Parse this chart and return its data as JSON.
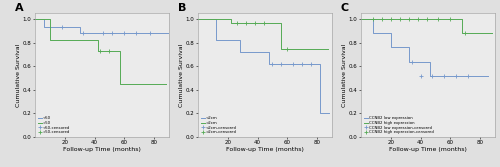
{
  "panels": [
    {
      "label": "A",
      "xlabel": "Follow-up Time (months)",
      "ylabel": "Cumulative Survival",
      "xlim": [
        0,
        90
      ],
      "ylim": [
        0.0,
        1.05
      ],
      "xticks": [
        20,
        40,
        60,
        80
      ],
      "yticks": [
        0.0,
        0.2,
        0.4,
        0.6,
        0.8,
        1.0
      ],
      "legend": [
        "<50",
        ">50",
        "<50-censored",
        ">50-censored"
      ],
      "curve1": {
        "color": "#7799cc",
        "times": [
          0,
          6,
          6,
          30,
          30,
          90
        ],
        "surv": [
          1.0,
          1.0,
          0.93,
          0.93,
          0.88,
          0.88
        ],
        "censor_times": [
          18,
          32,
          46,
          52,
          60,
          68,
          77
        ],
        "censor_surv": [
          0.93,
          0.88,
          0.88,
          0.88,
          0.88,
          0.88,
          0.88
        ]
      },
      "curve2": {
        "color": "#55aa55",
        "times": [
          0,
          10,
          10,
          42,
          42,
          57,
          57,
          78,
          78,
          88
        ],
        "surv": [
          1.0,
          1.0,
          0.82,
          0.82,
          0.73,
          0.73,
          0.45,
          0.45,
          0.45,
          0.45
        ],
        "censor_times": [
          44,
          50
        ],
        "censor_surv": [
          0.73,
          0.73
        ]
      }
    },
    {
      "label": "B",
      "xlabel": "Follow-up Time (months)",
      "ylabel": "Cumulative Survival",
      "xlim": [
        0,
        90
      ],
      "ylim": [
        0.0,
        1.05
      ],
      "xticks": [
        20,
        40,
        60,
        80
      ],
      "yticks": [
        0.0,
        0.2,
        0.4,
        0.6,
        0.8,
        1.0
      ],
      "legend": [
        "<2cm",
        ">2cm",
        "<2cm-censored",
        ">2cm-censored"
      ],
      "curve1": {
        "color": "#7799cc",
        "times": [
          0,
          12,
          12,
          28,
          28,
          48,
          48,
          62,
          62,
          82,
          82,
          88
        ],
        "surv": [
          1.0,
          1.0,
          0.82,
          0.82,
          0.72,
          0.72,
          0.62,
          0.62,
          0.62,
          0.62,
          0.2,
          0.2
        ],
        "censor_times": [
          50,
          56,
          64,
          70,
          76
        ],
        "censor_surv": [
          0.62,
          0.62,
          0.62,
          0.62,
          0.62
        ]
      },
      "curve2": {
        "color": "#55aa55",
        "times": [
          0,
          22,
          22,
          56,
          56,
          72,
          72,
          87
        ],
        "surv": [
          1.0,
          1.0,
          0.97,
          0.97,
          0.75,
          0.75,
          0.75,
          0.75
        ],
        "censor_times": [
          26,
          32,
          38,
          44,
          60
        ],
        "censor_surv": [
          0.97,
          0.97,
          0.97,
          0.97,
          0.75
        ]
      }
    },
    {
      "label": "C",
      "xlabel": "Follow-up Time (months)",
      "ylabel": "Cumulative Survival",
      "xlim": [
        0,
        90
      ],
      "ylim": [
        0.0,
        1.05
      ],
      "xticks": [
        20,
        40,
        60,
        80
      ],
      "yticks": [
        0.0,
        0.2,
        0.4,
        0.6,
        0.8,
        1.0
      ],
      "legend": [
        "CCNB2 low expression",
        "CCNB2 high expression",
        "CCNB2 low expression-censored",
        "CCNB2 high expression-censored"
      ],
      "curve1": {
        "color": "#7799cc",
        "times": [
          0,
          8,
          8,
          20,
          20,
          32,
          32,
          46,
          46,
          85
        ],
        "surv": [
          1.0,
          1.0,
          0.88,
          0.88,
          0.76,
          0.76,
          0.64,
          0.64,
          0.52,
          0.52
        ],
        "censor_times": [
          34,
          40,
          48,
          56,
          64,
          72
        ],
        "censor_surv": [
          0.64,
          0.52,
          0.52,
          0.52,
          0.52,
          0.52
        ]
      },
      "curve2": {
        "color": "#55aa55",
        "times": [
          0,
          68,
          68,
          82,
          82,
          88
        ],
        "surv": [
          1.0,
          1.0,
          0.88,
          0.88,
          0.88,
          0.88
        ],
        "censor_times": [
          8,
          14,
          20,
          26,
          32,
          38,
          44,
          52,
          60,
          70
        ],
        "censor_surv": [
          1.0,
          1.0,
          1.0,
          1.0,
          1.0,
          1.0,
          1.0,
          1.0,
          1.0,
          0.88
        ]
      }
    }
  ],
  "bg_color": "#e0e0e0",
  "plot_bg_color": "#ebebeb",
  "font_size": 4.5,
  "tick_font_size": 4.0,
  "label_bold_size": 8
}
